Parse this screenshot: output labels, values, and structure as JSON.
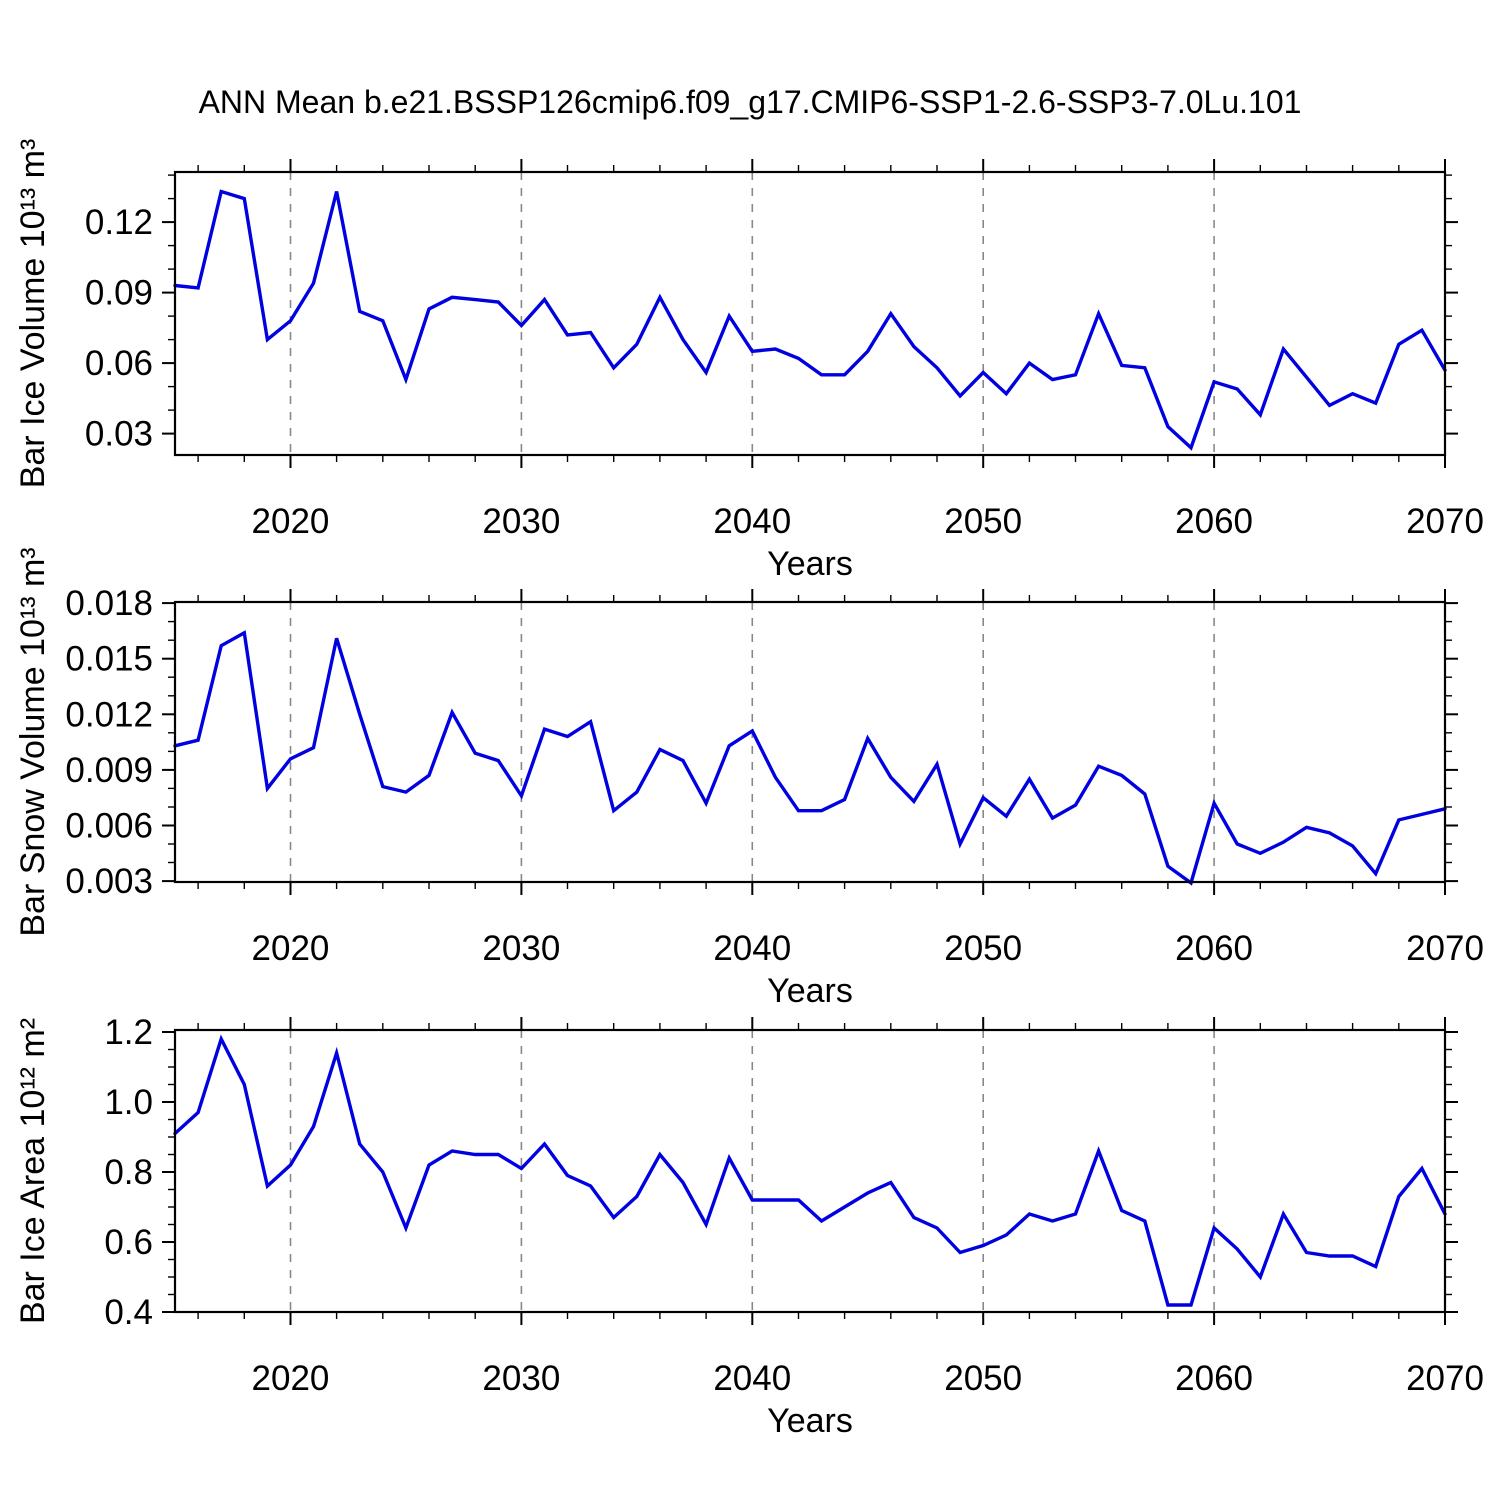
{
  "title": "ANN Mean b.e21.BSSP126cmip6.f09_g17.CMIP6-SSP1-2.6-SSP3-7.0Lu.101",
  "figure": {
    "line_color": "#0000e0",
    "grid_color": "#888888",
    "axis_color": "#000000",
    "x_axis": {
      "label": "Years",
      "start": 2015,
      "end": 2070,
      "major_ticks": [
        2020,
        2030,
        2040,
        2050,
        2060,
        2070
      ],
      "tick_labels": [
        "2020",
        "2030",
        "2040",
        "2050",
        "2060",
        "2070"
      ],
      "minor_step": 2,
      "grid_years": [
        2020,
        2030,
        2040,
        2050,
        2060
      ],
      "years": [
        2015,
        2016,
        2017,
        2018,
        2019,
        2020,
        2021,
        2022,
        2023,
        2024,
        2025,
        2026,
        2027,
        2028,
        2029,
        2030,
        2031,
        2032,
        2033,
        2034,
        2035,
        2036,
        2037,
        2038,
        2039,
        2040,
        2041,
        2042,
        2043,
        2044,
        2045,
        2046,
        2047,
        2048,
        2049,
        2050,
        2051,
        2052,
        2053,
        2054,
        2055,
        2056,
        2057,
        2058,
        2059,
        2060,
        2061,
        2062,
        2063,
        2064,
        2065,
        2066,
        2067,
        2068,
        2069,
        2070
      ]
    }
  },
  "chart_data": [
    {
      "type": "line",
      "name": "bar-ice-volume",
      "ylabel": "Bar Ice Volume 10¹³ m³",
      "xlabel": "Years",
      "ylim": [
        0.0209,
        0.1413
      ],
      "yticks": [
        0.12,
        0.09,
        0.06,
        0.03
      ],
      "ytick_labels": [
        "0.12",
        "0.09",
        "0.06",
        "0.03"
      ],
      "y_minor_step": 0.01,
      "grid": "x-dashed",
      "legend": "none",
      "values": [
        0.093,
        0.092,
        0.133,
        0.13,
        0.07,
        0.078,
        0.094,
        0.133,
        0.082,
        0.078,
        0.053,
        0.083,
        0.088,
        0.087,
        0.086,
        0.076,
        0.087,
        0.072,
        0.073,
        0.058,
        0.068,
        0.088,
        0.07,
        0.056,
        0.08,
        0.065,
        0.066,
        0.062,
        0.055,
        0.055,
        0.065,
        0.081,
        0.067,
        0.058,
        0.046,
        0.056,
        0.047,
        0.06,
        0.053,
        0.055,
        0.081,
        0.059,
        0.058,
        0.033,
        0.024,
        0.052,
        0.049,
        0.038,
        0.066,
        0.054,
        0.042,
        0.047,
        0.043,
        0.068,
        0.074,
        0.057
      ]
    },
    {
      "type": "line",
      "name": "bar-snow-volume",
      "ylabel": "Bar Snow Volume 10¹³ m³",
      "xlabel": "Years",
      "ylim": [
        0.00295,
        0.01806
      ],
      "yticks": [
        0.018,
        0.015,
        0.012,
        0.009,
        0.006,
        0.003
      ],
      "ytick_labels": [
        "0.018",
        "0.015",
        "0.012",
        "0.009",
        "0.006",
        "0.003"
      ],
      "y_minor_step": 0.001,
      "grid": "x-dashed",
      "legend": "none",
      "values": [
        0.0103,
        0.0106,
        0.0157,
        0.0164,
        0.008,
        0.0096,
        0.0102,
        0.0161,
        0.012,
        0.0081,
        0.0078,
        0.0087,
        0.0121,
        0.0099,
        0.0095,
        0.0076,
        0.0112,
        0.0108,
        0.0116,
        0.0068,
        0.0078,
        0.0101,
        0.0095,
        0.0072,
        0.0103,
        0.0111,
        0.0086,
        0.0068,
        0.0068,
        0.0074,
        0.0107,
        0.0086,
        0.0073,
        0.0093,
        0.005,
        0.0075,
        0.0065,
        0.0085,
        0.0064,
        0.0071,
        0.0092,
        0.0087,
        0.0077,
        0.0038,
        0.0029,
        0.0072,
        0.005,
        0.0045,
        0.0051,
        0.0059,
        0.0056,
        0.0049,
        0.0034,
        0.0063,
        0.0066,
        0.0069
      ]
    },
    {
      "type": "line",
      "name": "bar-ice-area",
      "ylabel": "Bar Ice Area 10¹² m²",
      "xlabel": "Years",
      "ylim": [
        0.4,
        1.2057
      ],
      "yticks": [
        1.2,
        1.0,
        0.8,
        0.6,
        0.4
      ],
      "ytick_labels": [
        "1.2",
        "1.0",
        "0.8",
        "0.6",
        "0.4"
      ],
      "y_minor_step": 0.05,
      "grid": "x-dashed",
      "legend": "none",
      "values": [
        0.91,
        0.97,
        1.18,
        1.05,
        0.76,
        0.82,
        0.93,
        1.14,
        0.88,
        0.8,
        0.64,
        0.82,
        0.86,
        0.85,
        0.85,
        0.81,
        0.88,
        0.79,
        0.76,
        0.67,
        0.73,
        0.85,
        0.77,
        0.65,
        0.84,
        0.72,
        0.72,
        0.72,
        0.66,
        0.7,
        0.74,
        0.77,
        0.67,
        0.64,
        0.57,
        0.59,
        0.62,
        0.68,
        0.66,
        0.68,
        0.86,
        0.69,
        0.66,
        0.42,
        0.42,
        0.64,
        0.58,
        0.5,
        0.68,
        0.57,
        0.56,
        0.56,
        0.53,
        0.73,
        0.81,
        0.68
      ]
    }
  ]
}
